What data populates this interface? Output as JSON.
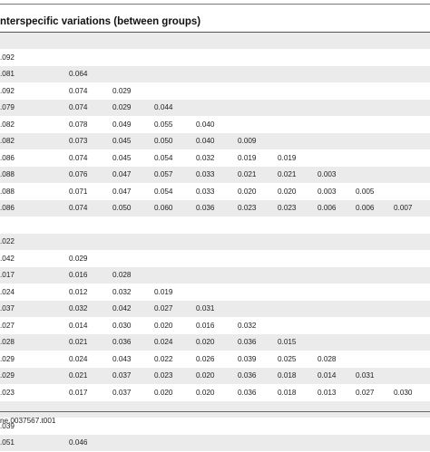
{
  "heading": "nterspecific variations (between groups)",
  "doi": "ne.0037567.t001",
  "rows": [
    [
      ""
    ],
    [
      ".092"
    ],
    [
      ".081",
      "0.064"
    ],
    [
      ".092",
      "0.074",
      "0.029"
    ],
    [
      ".079",
      "0.074",
      "0.029",
      "0.044"
    ],
    [
      ".082",
      "0.078",
      "0.049",
      "0.055",
      "0.040"
    ],
    [
      ".082",
      "0.073",
      "0.045",
      "0.050",
      "0.040",
      "0.009"
    ],
    [
      ".086",
      "0.074",
      "0.045",
      "0.054",
      "0.032",
      "0.019",
      "0.019"
    ],
    [
      ".088",
      "0.076",
      "0.047",
      "0.057",
      "0.033",
      "0.021",
      "0.021",
      "0.003"
    ],
    [
      ".088",
      "0.071",
      "0.047",
      "0.054",
      "0.033",
      "0.020",
      "0.020",
      "0.003",
      "0.005"
    ],
    [
      ".086",
      "0.074",
      "0.050",
      "0.060",
      "0.036",
      "0.023",
      "0.023",
      "0.006",
      "0.006",
      "0.007"
    ],
    [
      ""
    ],
    [
      ".022"
    ],
    [
      ".042",
      "0.029"
    ],
    [
      ".017",
      "0.016",
      "0.028"
    ],
    [
      ".024",
      "0.012",
      "0.032",
      "0.019"
    ],
    [
      ".037",
      "0.032",
      "0.042",
      "0.027",
      "0.031"
    ],
    [
      ".027",
      "0.014",
      "0.030",
      "0.020",
      "0.016",
      "0.032"
    ],
    [
      ".028",
      "0.021",
      "0.036",
      "0.024",
      "0.020",
      "0.036",
      "0.015"
    ],
    [
      ".029",
      "0.024",
      "0.043",
      "0.022",
      "0.026",
      "0.039",
      "0.025",
      "0.028"
    ],
    [
      ".029",
      "0.021",
      "0.037",
      "0.023",
      "0.020",
      "0.036",
      "0.018",
      "0.014",
      "0.031"
    ],
    [
      ".023",
      "0.017",
      "0.037",
      "0.020",
      "0.020",
      "0.036",
      "0.018",
      "0.013",
      "0.027",
      "0.030"
    ],
    [
      ""
    ],
    [
      ".039"
    ],
    [
      ".051",
      "0.046"
    ]
  ]
}
